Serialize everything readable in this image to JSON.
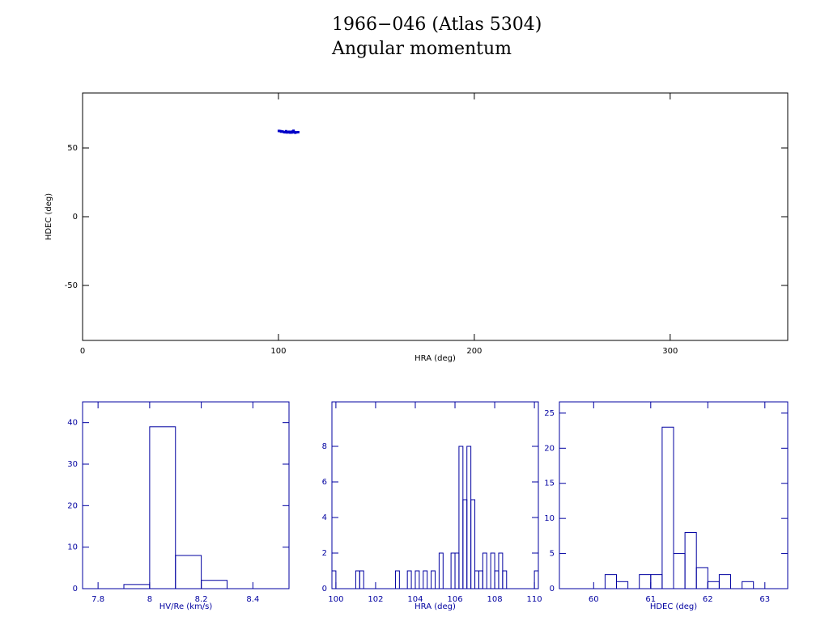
{
  "chart_data": [
    {
      "type": "scatter",
      "title": "1966−046 (Atlas 5304)",
      "subtitle": "Angular momentum",
      "x_label": "HRA (deg)",
      "y_label": "HDEC (deg)",
      "xlim": [
        0,
        360
      ],
      "ylim": [
        -90,
        90
      ],
      "xticks": [
        0,
        100,
        200,
        300
      ],
      "yticks": [
        -50,
        0,
        50
      ],
      "color": "#0000c8",
      "x": [
        100.2,
        100.9,
        101.4,
        102.1,
        102.8,
        103.3,
        103.9,
        104.4,
        104.9,
        105.3,
        105.7,
        106.1,
        106.3,
        106.5,
        106.8,
        107.0,
        107.3,
        107.7,
        108.1,
        108.6,
        109.2,
        110.1
      ],
      "values": [
        62.4,
        62.3,
        61.9,
        62.0,
        61.6,
        61.4,
        62.2,
        61.3,
        61.5,
        61.8,
        61.3,
        61.2,
        61.7,
        61.4,
        61.3,
        61.9,
        61.4,
        62.5,
        61.6,
        61.1,
        61.4,
        61.5
      ]
    },
    {
      "type": "histogram",
      "x_label": "HV/Re (km/s)",
      "xlim": [
        7.74,
        8.54
      ],
      "ylim": [
        0,
        45
      ],
      "xticks": [
        7.8,
        8,
        8.2,
        8.4
      ],
      "yticks": [
        0,
        10,
        20,
        30,
        40
      ],
      "color": "#0000a0",
      "bins": [
        7.9,
        8.0,
        8.1,
        8.2,
        8.3
      ],
      "counts": [
        1,
        39,
        8,
        2
      ]
    },
    {
      "type": "histogram",
      "x_label": "HRA (deg)",
      "xlim": [
        99.8,
        110.2
      ],
      "ylim": [
        0,
        10.5
      ],
      "xticks": [
        100,
        102,
        104,
        106,
        108,
        110
      ],
      "yticks": [
        0,
        2,
        4,
        6,
        8
      ],
      "color": "#0000a0",
      "bins": [
        99.8,
        100.0,
        100.2,
        100.4,
        100.6,
        100.8,
        101.0,
        101.2,
        101.4,
        101.6,
        101.8,
        102.0,
        102.2,
        102.4,
        102.6,
        102.8,
        103.0,
        103.2,
        103.4,
        103.6,
        103.8,
        104.0,
        104.2,
        104.4,
        104.6,
        104.8,
        105.0,
        105.2,
        105.4,
        105.6,
        105.8,
        106.0,
        106.2,
        106.4,
        106.6,
        106.8,
        107.0,
        107.2,
        107.4,
        107.6,
        107.8,
        108.0,
        108.2,
        108.4,
        108.6,
        108.8,
        109.0,
        109.2,
        109.4,
        109.6,
        109.8,
        110.0,
        110.2
      ],
      "counts": [
        1,
        0,
        0,
        0,
        0,
        0,
        1,
        1,
        0,
        0,
        0,
        0,
        0,
        0,
        0,
        0,
        1,
        0,
        0,
        1,
        0,
        1,
        0,
        1,
        0,
        1,
        0,
        2,
        0,
        0,
        2,
        2,
        8,
        5,
        8,
        5,
        1,
        1,
        2,
        0,
        2,
        1,
        2,
        1,
        0,
        0,
        0,
        0,
        0,
        0,
        0,
        1
      ]
    },
    {
      "type": "histogram",
      "x_label": "HDEC (deg)",
      "xlim": [
        59.4,
        63.4
      ],
      "ylim": [
        0,
        26.6
      ],
      "xticks": [
        60,
        61,
        62,
        63
      ],
      "yticks": [
        0,
        5,
        10,
        15,
        20,
        25
      ],
      "color": "#0000a0",
      "bins": [
        60.2,
        60.4,
        60.6,
        60.8,
        61.0,
        61.2,
        61.4,
        61.6,
        61.8,
        62.0,
        62.2,
        62.4,
        62.6,
        62.8
      ],
      "counts": [
        2,
        1,
        0,
        2,
        2,
        23,
        5,
        8,
        3,
        1,
        2,
        0,
        1
      ]
    }
  ]
}
